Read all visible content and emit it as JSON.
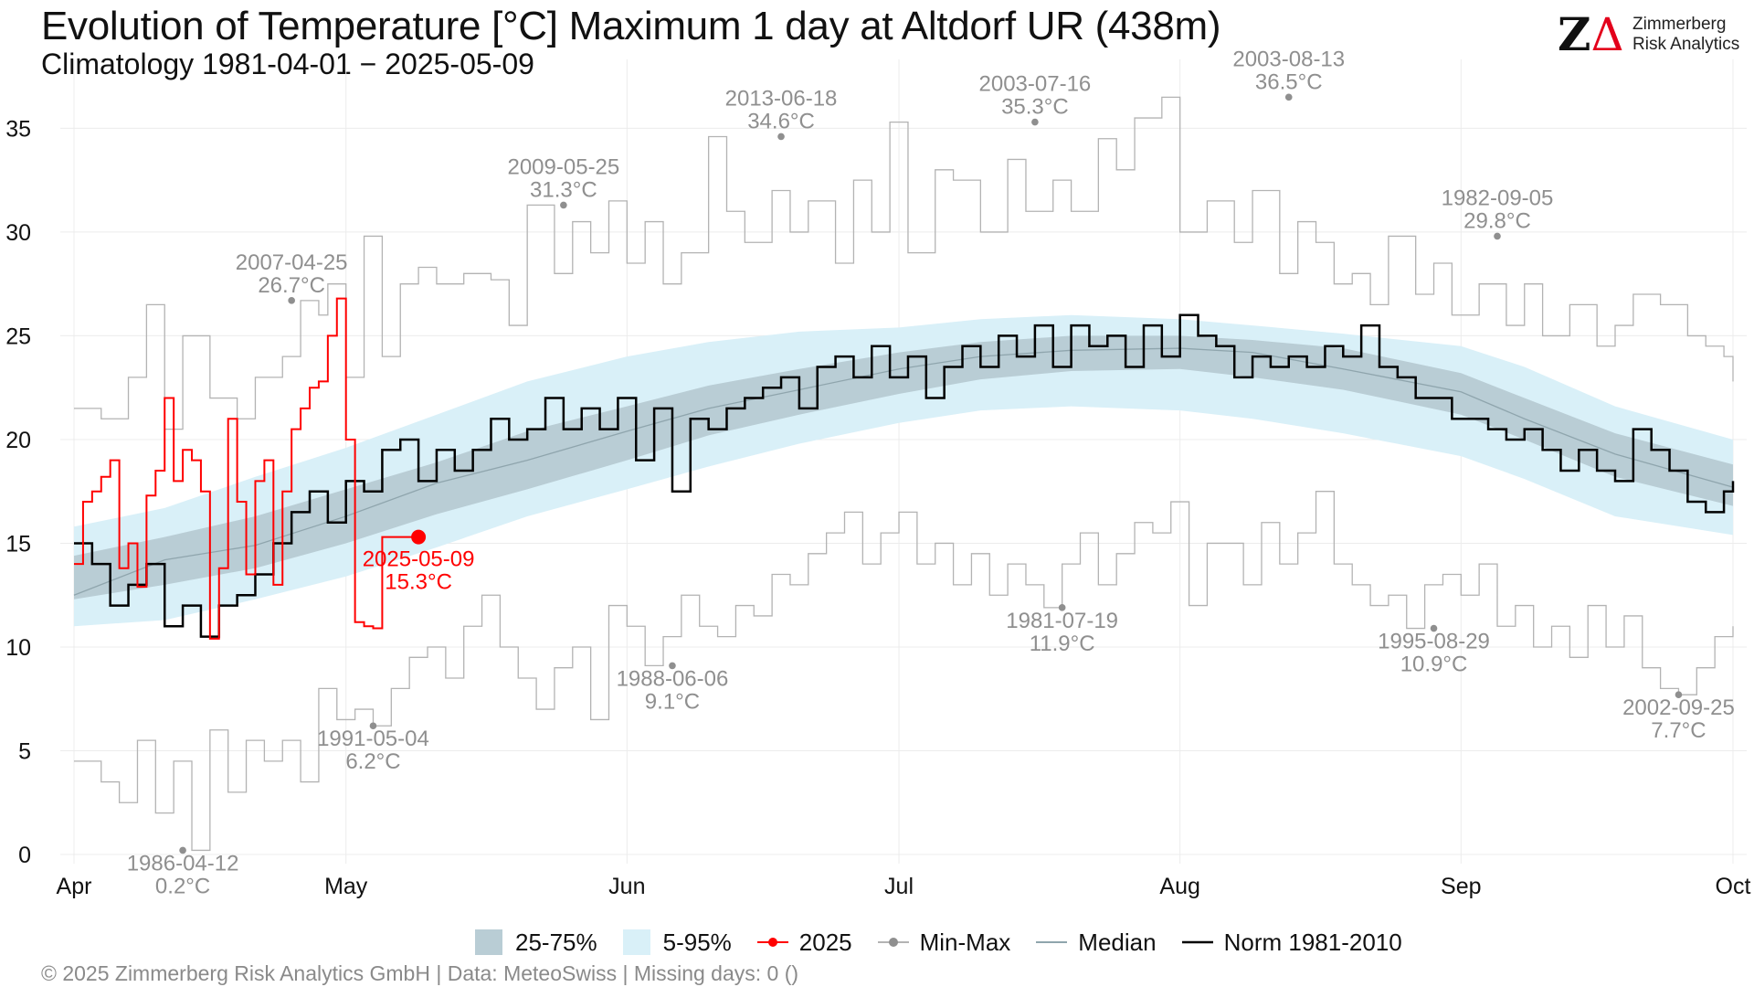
{
  "header": {
    "title": "Evolution of Temperature [°C] Maximum 1 day at Altdorf  UR (438m)",
    "subtitle": "Climatology 1981-04-01 − 2025-05-09"
  },
  "logo": {
    "mark_a": "Z",
    "mark_b": "Δ",
    "line1": "Zimmerberg",
    "line2": "Risk Analytics"
  },
  "footer": {
    "text": "©  2025 Zimmerberg Risk Analytics GmbH | Data: MeteoSwiss | Missing days: 0 ()"
  },
  "legend": {
    "q25_75": "25-75%",
    "q5_95": "5-95%",
    "y2025": "2025",
    "minmax": "Min-Max",
    "median": "Median",
    "norm": "Norm 1981-2010"
  },
  "colors": {
    "band_25_75": "#b9cdd5",
    "band_5_95": "#d9f0f8",
    "current": "#ff0000",
    "minmax": "#b3b3b3",
    "median": "#8fa5ad",
    "norm": "#000000",
    "annotation": "#8f8f8f"
  },
  "chart_data": {
    "type": "line",
    "x_axis": {
      "start": "Apr 1",
      "end": "Oct 1",
      "ticks": [
        "Apr",
        "May",
        "Jun",
        "Jul",
        "Aug",
        "Sep",
        "Oct"
      ],
      "tick_days": [
        0,
        30,
        61,
        91,
        122,
        153,
        183
      ]
    },
    "y_axis": {
      "ylim": [
        0,
        37
      ],
      "ticks": [
        0,
        5,
        10,
        15,
        20,
        25,
        30,
        35
      ]
    },
    "grid": true,
    "legend_position": "bottom",
    "band_5_95": {
      "x": [
        0,
        10,
        20,
        30,
        40,
        50,
        61,
        70,
        80,
        91,
        100,
        110,
        122,
        130,
        140,
        153,
        160,
        170,
        183
      ],
      "low": [
        11,
        11.3,
        12.3,
        13.4,
        14.8,
        16.3,
        17.6,
        18.7,
        19.8,
        20.8,
        21.4,
        21.6,
        21.4,
        21,
        20.3,
        19.2,
        18.1,
        16.3,
        15.4
      ],
      "high": [
        15.8,
        16.7,
        18.2,
        19.6,
        21.2,
        22.8,
        24,
        24.7,
        25.2,
        25.4,
        25.8,
        26,
        25.8,
        25.5,
        25.1,
        24.5,
        23.5,
        21.6,
        20
      ]
    },
    "band_25_75": {
      "x": [
        0,
        10,
        20,
        30,
        40,
        50,
        61,
        70,
        80,
        91,
        100,
        110,
        122,
        130,
        140,
        153,
        160,
        170,
        183
      ],
      "low": [
        12.3,
        13,
        13.8,
        15,
        16.4,
        17.6,
        19,
        20.2,
        21.2,
        22.2,
        22.9,
        23.3,
        23.4,
        23,
        22.4,
        21.2,
        20,
        18.2,
        16.8
      ],
      "high": [
        14.4,
        15.3,
        16.3,
        17.6,
        18.9,
        20.4,
        21.6,
        22.6,
        23.4,
        24.2,
        24.7,
        25,
        25,
        24.8,
        24.4,
        23.2,
        22,
        20.3,
        18.8
      ]
    },
    "series": [
      {
        "name": "Median",
        "x": [
          0,
          10,
          20,
          30,
          40,
          50,
          61,
          70,
          80,
          91,
          100,
          110,
          122,
          130,
          140,
          153,
          160,
          170,
          183
        ],
        "y": [
          12.5,
          14.2,
          14.9,
          16.3,
          17.9,
          19,
          20.4,
          21.5,
          22.4,
          23.4,
          24,
          24.3,
          24.4,
          24.2,
          23.4,
          22.3,
          21,
          19.3,
          17.7
        ]
      },
      {
        "name": "Norm 1981-2010",
        "x": [
          0,
          2,
          4,
          6,
          8,
          10,
          12,
          14,
          16,
          18,
          20,
          22,
          24,
          26,
          28,
          30,
          32,
          34,
          36,
          38,
          40,
          42,
          44,
          46,
          48,
          50,
          52,
          54,
          56,
          58,
          60,
          62,
          64,
          66,
          68,
          70,
          72,
          74,
          76,
          78,
          80,
          82,
          84,
          86,
          88,
          90,
          92,
          94,
          96,
          98,
          100,
          102,
          104,
          106,
          108,
          110,
          112,
          114,
          116,
          118,
          120,
          122,
          124,
          126,
          128,
          130,
          132,
          134,
          136,
          138,
          140,
          142,
          144,
          146,
          148,
          150,
          152,
          154,
          156,
          158,
          160,
          162,
          164,
          166,
          168,
          170,
          172,
          174,
          176,
          178,
          180,
          182,
          183
        ],
        "y": [
          15,
          14,
          12,
          13,
          14,
          11,
          12,
          10.5,
          12,
          12.5,
          13.5,
          15,
          16.5,
          17.5,
          16,
          18,
          17.5,
          19.5,
          20,
          18,
          19.5,
          18.5,
          19.5,
          21,
          20,
          20.5,
          22,
          20.5,
          21.5,
          20.5,
          22,
          19,
          21.5,
          17.5,
          21,
          20.5,
          21.5,
          22,
          22.5,
          23,
          21.5,
          23.5,
          24,
          23,
          24.5,
          23,
          24,
          22,
          23.5,
          24.5,
          23.5,
          25,
          24,
          25.5,
          23.5,
          25.5,
          24.5,
          25,
          23.5,
          25.5,
          24,
          26,
          25,
          24.5,
          23,
          24,
          23.5,
          24,
          23.5,
          24.5,
          24,
          25.5,
          23.5,
          23,
          22,
          22,
          21,
          21,
          20.5,
          20,
          20.5,
          19.5,
          18.5,
          19.5,
          18.5,
          18,
          20.5,
          19.5,
          18.5,
          17,
          16.5,
          17.5,
          18
        ]
      },
      {
        "name": "2025",
        "x": [
          0,
          1,
          2,
          3,
          4,
          5,
          6,
          7,
          8,
          9,
          10,
          11,
          12,
          13,
          14,
          15,
          16,
          17,
          18,
          19,
          20,
          21,
          22,
          23,
          24,
          25,
          26,
          27,
          28,
          29,
          30,
          31,
          32,
          33,
          34,
          35,
          36,
          37,
          38
        ],
        "y": [
          14,
          17,
          17.5,
          18.2,
          19,
          13.8,
          15,
          12.9,
          17.3,
          18.5,
          22,
          18,
          19.5,
          19,
          17.5,
          10.4,
          13.8,
          21,
          17,
          13.5,
          18,
          19,
          13,
          17.5,
          20.5,
          21.5,
          22.5,
          22.8,
          25,
          26.8,
          20,
          11.2,
          11,
          10.9,
          15.3,
          15.3,
          15.3,
          15.3,
          15.3
        ]
      },
      {
        "name": "Max",
        "x": [
          0,
          3,
          6,
          8,
          10,
          12,
          15,
          18,
          20,
          23,
          25,
          27,
          28,
          30,
          32,
          34,
          36,
          38,
          40,
          43,
          46,
          48,
          50,
          53,
          55,
          57,
          59,
          61,
          63,
          65,
          67,
          70,
          72,
          74,
          77,
          79,
          81,
          84,
          86,
          88,
          90,
          92,
          95,
          97,
          100,
          103,
          105,
          108,
          110,
          113,
          115,
          117,
          120,
          122,
          125,
          128,
          130,
          133,
          135,
          137,
          139,
          141,
          143,
          145,
          148,
          150,
          152,
          155,
          158,
          160,
          162,
          165,
          168,
          170,
          172,
          175,
          178,
          180,
          182,
          183
        ],
        "y": [
          21.5,
          21,
          23,
          26.5,
          20.5,
          25,
          22,
          21,
          23,
          24,
          26.7,
          26,
          27.5,
          23,
          29.8,
          24,
          27.5,
          28.3,
          27.5,
          28,
          27.7,
          25.5,
          31.3,
          28,
          30.5,
          29,
          31.5,
          28.5,
          30.5,
          27.5,
          29,
          34.6,
          31,
          29.5,
          32,
          30,
          31.5,
          28.5,
          32.5,
          30,
          35.3,
          29,
          33,
          32.5,
          30,
          33.5,
          31,
          32.5,
          31,
          34.5,
          33,
          35.5,
          36.5,
          30,
          31.5,
          29.5,
          32,
          28,
          30.5,
          29.5,
          27.5,
          28,
          26.5,
          29.8,
          27,
          28.5,
          26,
          27.5,
          25.5,
          27.5,
          25,
          26.5,
          24.5,
          25.5,
          27,
          26.5,
          25,
          24.5,
          24,
          22.8
        ]
      },
      {
        "name": "Min",
        "x": [
          0,
          3,
          5,
          7,
          9,
          11,
          13,
          15,
          17,
          19,
          21,
          23,
          25,
          27,
          29,
          31,
          33,
          35,
          37,
          39,
          41,
          43,
          45,
          47,
          49,
          51,
          53,
          55,
          57,
          59,
          61,
          63,
          65,
          67,
          69,
          71,
          73,
          75,
          77,
          79,
          81,
          83,
          85,
          87,
          89,
          91,
          93,
          95,
          97,
          99,
          101,
          103,
          105,
          107,
          109,
          111,
          113,
          115,
          117,
          119,
          121,
          123,
          125,
          127,
          129,
          131,
          133,
          135,
          137,
          139,
          141,
          143,
          145,
          147,
          149,
          151,
          153,
          155,
          157,
          159,
          161,
          163,
          165,
          167,
          169,
          171,
          173,
          175,
          177,
          179,
          181,
          183
        ],
        "y": [
          4.5,
          3.5,
          2.5,
          5.5,
          2,
          4.5,
          0.2,
          6,
          3,
          5.5,
          4.5,
          5.5,
          3.5,
          8,
          6.5,
          7,
          6.2,
          8,
          9.5,
          10,
          8.5,
          11,
          12.5,
          10,
          8.5,
          7,
          9,
          10,
          6.5,
          12,
          11,
          9.1,
          10.5,
          12.5,
          11,
          10.5,
          12,
          11.5,
          13.5,
          13,
          14.5,
          15.5,
          16.5,
          14,
          15.5,
          16.5,
          14,
          15,
          13,
          14.5,
          12.5,
          14,
          13,
          11.9,
          14,
          15.5,
          13,
          14.5,
          16,
          15.5,
          17,
          12,
          15,
          15,
          13,
          16,
          14,
          15.5,
          17.5,
          14,
          13,
          12,
          12.5,
          10.9,
          13,
          13.5,
          12.5,
          14,
          11,
          12,
          10,
          11,
          9.5,
          12,
          10,
          11.5,
          9,
          8,
          7.7,
          9,
          10.5,
          11
        ]
      }
    ],
    "annotations": [
      {
        "x": 12,
        "y": 0.2,
        "date": "1986-04-12",
        "value": "0.2°C"
      },
      {
        "x": 24,
        "y": 26.7,
        "date": "2007-04-25",
        "value": "26.7°C"
      },
      {
        "x": 33,
        "y": 6.2,
        "date": "1991-05-04",
        "value": "6.2°C"
      },
      {
        "x": 54,
        "y": 31.3,
        "date": "2009-05-25",
        "value": "31.3°C"
      },
      {
        "x": 66,
        "y": 9.1,
        "date": "1988-06-06",
        "value": "9.1°C"
      },
      {
        "x": 78,
        "y": 34.6,
        "date": "2013-06-18",
        "value": "34.6°C"
      },
      {
        "x": 106,
        "y": 35.3,
        "date": "2003-07-16",
        "value": "35.3°C"
      },
      {
        "x": 109,
        "y": 11.9,
        "date": "1981-07-19",
        "value": "11.9°C"
      },
      {
        "x": 134,
        "y": 36.5,
        "date": "2003-08-13",
        "value": "36.5°C"
      },
      {
        "x": 150,
        "y": 10.9,
        "date": "1995-08-29",
        "value": "10.9°C"
      },
      {
        "x": 157,
        "y": 29.8,
        "date": "1982-09-05",
        "value": "29.8°C"
      },
      {
        "x": 177,
        "y": 7.7,
        "date": "2002-09-25",
        "value": "7.7°C"
      }
    ],
    "current": {
      "x": 38,
      "y": 15.3,
      "date": "2025-05-09",
      "value": "15.3°C"
    }
  }
}
